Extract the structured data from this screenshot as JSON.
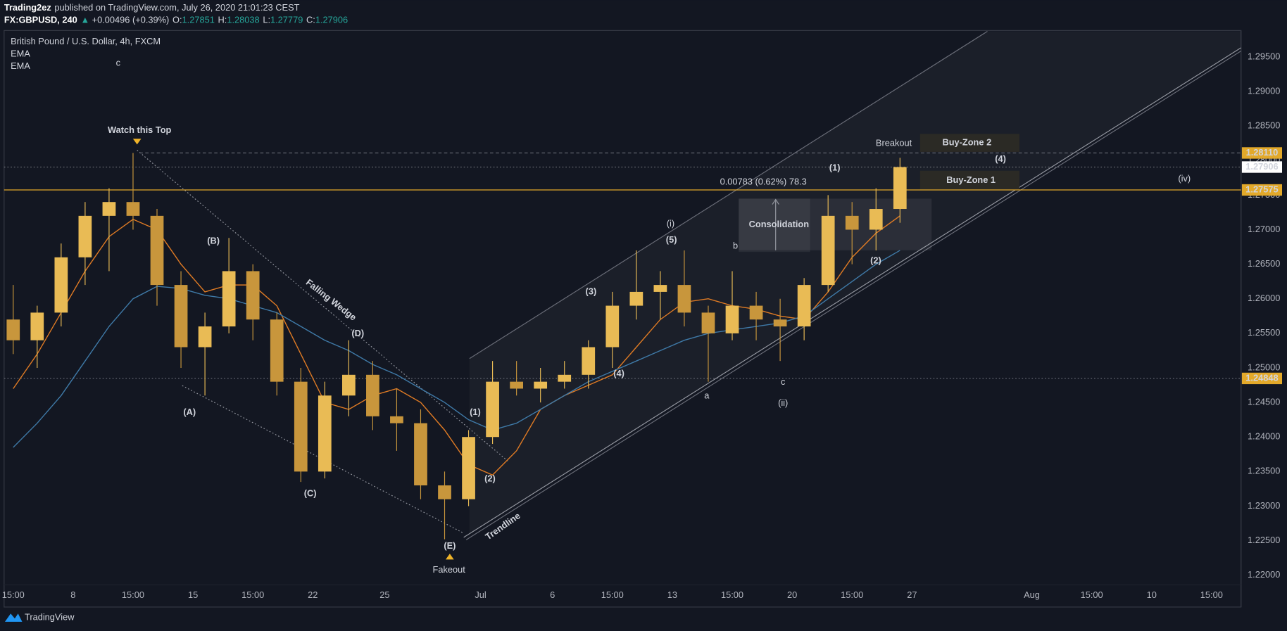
{
  "header": {
    "author": "Trading2ez",
    "published": "published on TradingView.com, July 26, 2020 21:01:23 CEST",
    "symbol": "FX:GBPUSD, 240",
    "arrow": "▲",
    "change": "+0.00496 (+0.39%)",
    "ohlc": [
      {
        "key": "O:",
        "value": "1.27851"
      },
      {
        "key": "H:",
        "value": "1.28038"
      },
      {
        "key": "L:",
        "value": "1.27779"
      },
      {
        "key": "C:",
        "value": "1.27906"
      }
    ]
  },
  "chart_data": {
    "type": "candlestick",
    "title": "British Pound / U.S. Dollar, 4h, FXCM",
    "up_color": "#e9bb55",
    "down_color": "#c8963c",
    "x": [
      -2.5,
      -1.5,
      -0.5,
      0.5,
      1.5,
      2.5,
      3.5,
      4.5,
      5.5,
      6.5,
      7.5,
      8.5,
      9.5,
      10.5,
      11.5,
      12.5,
      13.5,
      14.5,
      15.5,
      16.5,
      17.5,
      18.5,
      19.5,
      20.5,
      21.5,
      22.5,
      23.5,
      24.5,
      25.5,
      26.5,
      27.5,
      28.5,
      29.5,
      30.5,
      31.5,
      32.5,
      33.5,
      34.5
    ],
    "open": [
      1.257,
      1.254,
      1.258,
      1.266,
      1.272,
      1.274,
      1.272,
      1.262,
      1.253,
      1.256,
      1.264,
      1.257,
      1.248,
      1.235,
      1.246,
      1.249,
      1.243,
      1.242,
      1.233,
      1.231,
      1.24,
      1.248,
      1.247,
      1.248,
      1.249,
      1.253,
      1.259,
      1.261,
      1.262,
      1.258,
      1.255,
      1.259,
      1.257,
      1.256,
      1.262,
      1.272,
      1.27,
      1.273
    ],
    "high": [
      1.262,
      1.259,
      1.268,
      1.274,
      1.276,
      1.2811,
      1.273,
      1.264,
      1.258,
      1.2688,
      1.265,
      1.258,
      1.25,
      1.248,
      1.254,
      1.251,
      1.247,
      1.244,
      1.235,
      1.241,
      1.251,
      1.251,
      1.25,
      1.251,
      1.254,
      1.261,
      1.267,
      1.264,
      1.267,
      1.259,
      1.264,
      1.261,
      1.26,
      1.263,
      1.275,
      1.274,
      1.276,
      1.2804
    ],
    "low": [
      1.252,
      1.25,
      1.256,
      1.262,
      1.264,
      1.27,
      1.259,
      1.25,
      1.246,
      1.255,
      1.254,
      1.246,
      1.2335,
      1.234,
      1.243,
      1.241,
      1.238,
      1.231,
      1.2252,
      1.23,
      1.239,
      1.246,
      1.245,
      1.247,
      1.247,
      1.25,
      1.257,
      1.257,
      1.256,
      1.248,
      1.254,
      1.254,
      1.251,
      1.254,
      1.261,
      1.265,
      1.267,
      1.271
    ],
    "close": [
      1.254,
      1.258,
      1.266,
      1.272,
      1.274,
      1.272,
      1.262,
      1.253,
      1.256,
      1.264,
      1.257,
      1.248,
      1.235,
      1.246,
      1.249,
      1.243,
      1.242,
      1.233,
      1.231,
      1.24,
      1.248,
      1.247,
      1.248,
      1.249,
      1.253,
      1.259,
      1.261,
      1.262,
      1.258,
      1.255,
      1.259,
      1.257,
      1.256,
      1.262,
      1.272,
      1.27,
      1.273,
      1.27906
    ],
    "series": [
      {
        "name": "EMA",
        "color": "#e07b24",
        "values": [
          1.247,
          1.252,
          1.258,
          1.264,
          1.269,
          1.2715,
          1.27,
          1.265,
          1.261,
          1.262,
          1.262,
          1.259,
          1.252,
          1.245,
          1.244,
          1.246,
          1.247,
          1.245,
          1.241,
          1.236,
          1.2345,
          1.238,
          1.244,
          1.246,
          1.2475,
          1.249,
          1.253,
          1.257,
          1.2595,
          1.26,
          1.259,
          1.2585,
          1.2575,
          1.257,
          1.261,
          1.266,
          1.2695,
          1.272
        ]
      },
      {
        "name": "EMA",
        "color": "#3f7aa8",
        "values": [
          1.2385,
          1.242,
          1.246,
          1.251,
          1.256,
          1.26,
          1.2618,
          1.2615,
          1.2605,
          1.26,
          1.259,
          1.258,
          1.256,
          1.254,
          1.2525,
          1.2505,
          1.249,
          1.247,
          1.245,
          1.2425,
          1.241,
          1.242,
          1.244,
          1.246,
          1.248,
          1.2495,
          1.251,
          1.2525,
          1.254,
          1.255,
          1.2555,
          1.256,
          1.2565,
          1.2575,
          1.26,
          1.2625,
          1.265,
          1.267
        ]
      }
    ],
    "xlim": [
      -2.88,
      48.73
    ],
    "xticks": [
      {
        "value": -2.5,
        "label": "15:00"
      },
      {
        "value": 0,
        "label": "8"
      },
      {
        "value": 2.5,
        "label": "15:00"
      },
      {
        "value": 5,
        "label": "15"
      },
      {
        "value": 7.5,
        "label": "15:00"
      },
      {
        "value": 10,
        "label": "22"
      },
      {
        "value": 13,
        "label": "25"
      },
      {
        "value": 17,
        "label": "Jul"
      },
      {
        "value": 20,
        "label": "6"
      },
      {
        "value": 22.5,
        "label": "15:00"
      },
      {
        "value": 25,
        "label": "13"
      },
      {
        "value": 27.5,
        "label": "15:00"
      },
      {
        "value": 30,
        "label": "20"
      },
      {
        "value": 32.5,
        "label": "15:00"
      },
      {
        "value": 35,
        "label": "27"
      },
      {
        "value": 40,
        "label": "Aug"
      },
      {
        "value": 42.5,
        "label": "15:00"
      },
      {
        "value": 45,
        "label": "10"
      },
      {
        "value": 47.5,
        "label": "15:00"
      }
    ],
    "ylim": [
      1.2186,
      1.2987
    ],
    "yticks": [
      {
        "value": 1.22,
        "label": "1.22000"
      },
      {
        "value": 1.225,
        "label": "1.22500"
      },
      {
        "value": 1.23,
        "label": "1.23000"
      },
      {
        "value": 1.235,
        "label": "1.23500"
      },
      {
        "value": 1.24,
        "label": "1.24000"
      },
      {
        "value": 1.245,
        "label": "1.24500"
      },
      {
        "value": 1.25,
        "label": "1.25000"
      },
      {
        "value": 1.255,
        "label": "1.25500"
      },
      {
        "value": 1.26,
        "label": "1.26000"
      },
      {
        "value": 1.265,
        "label": "1.26500"
      },
      {
        "value": 1.27,
        "label": "1.27000"
      },
      {
        "value": 1.275,
        "label": "1.27500"
      },
      {
        "value": 1.28,
        "label": "1.28000"
      },
      {
        "value": 1.285,
        "label": "1.28500"
      },
      {
        "value": 1.29,
        "label": "1.29000"
      },
      {
        "value": 1.295,
        "label": "1.29500"
      }
    ],
    "grid": false,
    "levels": [
      {
        "value": 1.2811,
        "label": "1.28110",
        "color": "#e3a92a",
        "style": "dashed"
      },
      {
        "value": 1.27906,
        "label": "1.27906",
        "color": "#ffffff",
        "style": "dotted"
      },
      {
        "value": 1.27575,
        "label": "1.27575",
        "color": "#e3a92a",
        "style": "solid"
      },
      {
        "value": 1.24848,
        "label": "1.24848",
        "color": "#e3a92a",
        "style": "dotted"
      }
    ],
    "annotations": [
      "c",
      "Watch this Top",
      "(A)",
      "(B)",
      "(C)",
      "(D)",
      "(E)",
      "Fakeout",
      "Falling Wedge",
      "Trendline",
      "(1)",
      "(2)",
      "(3)",
      "(4)",
      "(5)",
      "(i)",
      "a",
      "b",
      "c",
      "(ii)",
      "Consolidation",
      "0.00783 (0.62%) 78.3",
      "(1)",
      "(2)",
      "(4)",
      "Breakout",
      "Buy-Zone 2",
      "Buy-Zone 1",
      "(iv)"
    ]
  },
  "footer": {
    "brand": "TradingView"
  }
}
